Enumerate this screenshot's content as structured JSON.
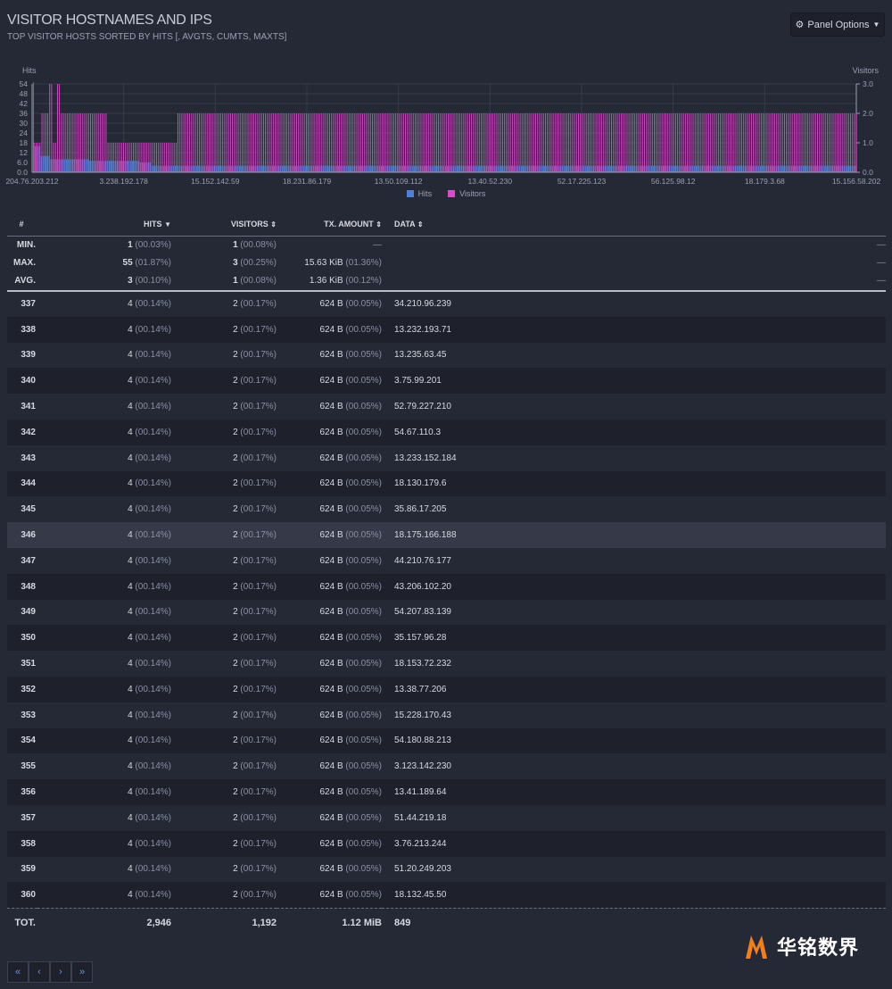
{
  "header": {
    "title": "VISITOR HOSTNAMES AND IPS",
    "subtitle": "TOP VISITOR HOSTS SORTED BY HITS [, AVGTS, CUMTS, MAXTS]",
    "panel_options": "Panel Options"
  },
  "chart_data": {
    "type": "bar",
    "y_left_label": "Hits",
    "y_right_label": "Visitors",
    "y_left_ticks": [
      "54",
      "48",
      "42",
      "36",
      "30",
      "24",
      "18",
      "12",
      "6.0",
      "0.0"
    ],
    "y_right_ticks": [
      "3.0",
      "2.0",
      "1.0",
      "0.0"
    ],
    "ylim_left": [
      0,
      54
    ],
    "ylim_right": [
      0,
      3
    ],
    "x_tick_labels": [
      "204.76.203.212",
      "3.238.192.178",
      "15.152.142.59",
      "18.231.86.179",
      "13.50.109.112",
      "13.40.52.230",
      "52.17.225.123",
      "56.125.98.12",
      "18.179.3.68",
      "15.156.58.202"
    ],
    "legend": [
      "Hits",
      "Visitors"
    ],
    "series_colors": {
      "hits": "#4f7fd6",
      "visitors": "#d44fc8"
    },
    "series": [
      {
        "name": "Hits",
        "segments": [
          {
            "count": 1,
            "value": 55
          },
          {
            "count": 3,
            "value": 16
          },
          {
            "count": 5,
            "value": 10
          },
          {
            "count": 20,
            "value": 8
          },
          {
            "count": 26,
            "value": 7
          },
          {
            "count": 6,
            "value": 6
          },
          {
            "count": 3,
            "value": 4
          },
          {
            "count": 360,
            "value": 4
          }
        ]
      },
      {
        "name": "Visitors",
        "segments": [
          {
            "count": 4,
            "value": 1
          },
          {
            "count": 4,
            "value": 2
          },
          {
            "count": 2,
            "value": 3
          },
          {
            "count": 2,
            "value": 1
          },
          {
            "count": 2,
            "value": 3
          },
          {
            "count": 24,
            "value": 2
          },
          {
            "count": 36,
            "value": 1
          },
          {
            "count": 350,
            "value": 2
          }
        ]
      }
    ]
  },
  "table": {
    "columns": {
      "num": "#",
      "hits": "HITS",
      "visitors": "VISITORS",
      "tx": "TX. AMOUNT",
      "data": "DATA"
    },
    "stats": [
      {
        "label": "MIN.",
        "hits": "1",
        "hits_pct": "(00.03%)",
        "visitors": "1",
        "visitors_pct": "(00.08%)",
        "tx": "",
        "tx_pct": "",
        "tx_dash": "—",
        "data_dash": "—"
      },
      {
        "label": "MAX.",
        "hits": "55",
        "hits_pct": "(01.87%)",
        "visitors": "3",
        "visitors_pct": "(00.25%)",
        "tx": "15.63 KiB",
        "tx_pct": "(01.36%)",
        "tx_dash": "",
        "data_dash": "—"
      },
      {
        "label": "AVG.",
        "hits": "3",
        "hits_pct": "(00.10%)",
        "visitors": "1",
        "visitors_pct": "(00.08%)",
        "tx": "1.36 KiB",
        "tx_pct": "(00.12%)",
        "tx_dash": "",
        "data_dash": "—"
      }
    ],
    "rows": [
      {
        "num": "337",
        "hits": "4",
        "hits_pct": "(00.14%)",
        "visitors": "2",
        "visitors_pct": "(00.17%)",
        "tx": "624 B",
        "tx_pct": "(00.05%)",
        "data": "34.210.96.239"
      },
      {
        "num": "338",
        "hits": "4",
        "hits_pct": "(00.14%)",
        "visitors": "2",
        "visitors_pct": "(00.17%)",
        "tx": "624 B",
        "tx_pct": "(00.05%)",
        "data": "13.232.193.71"
      },
      {
        "num": "339",
        "hits": "4",
        "hits_pct": "(00.14%)",
        "visitors": "2",
        "visitors_pct": "(00.17%)",
        "tx": "624 B",
        "tx_pct": "(00.05%)",
        "data": "13.235.63.45"
      },
      {
        "num": "340",
        "hits": "4",
        "hits_pct": "(00.14%)",
        "visitors": "2",
        "visitors_pct": "(00.17%)",
        "tx": "624 B",
        "tx_pct": "(00.05%)",
        "data": "3.75.99.201"
      },
      {
        "num": "341",
        "hits": "4",
        "hits_pct": "(00.14%)",
        "visitors": "2",
        "visitors_pct": "(00.17%)",
        "tx": "624 B",
        "tx_pct": "(00.05%)",
        "data": "52.79.227.210"
      },
      {
        "num": "342",
        "hits": "4",
        "hits_pct": "(00.14%)",
        "visitors": "2",
        "visitors_pct": "(00.17%)",
        "tx": "624 B",
        "tx_pct": "(00.05%)",
        "data": "54.67.110.3"
      },
      {
        "num": "343",
        "hits": "4",
        "hits_pct": "(00.14%)",
        "visitors": "2",
        "visitors_pct": "(00.17%)",
        "tx": "624 B",
        "tx_pct": "(00.05%)",
        "data": "13.233.152.184"
      },
      {
        "num": "344",
        "hits": "4",
        "hits_pct": "(00.14%)",
        "visitors": "2",
        "visitors_pct": "(00.17%)",
        "tx": "624 B",
        "tx_pct": "(00.05%)",
        "data": "18.130.179.6"
      },
      {
        "num": "345",
        "hits": "4",
        "hits_pct": "(00.14%)",
        "visitors": "2",
        "visitors_pct": "(00.17%)",
        "tx": "624 B",
        "tx_pct": "(00.05%)",
        "data": "35.86.17.205"
      },
      {
        "num": "346",
        "hits": "4",
        "hits_pct": "(00.14%)",
        "visitors": "2",
        "visitors_pct": "(00.17%)",
        "tx": "624 B",
        "tx_pct": "(00.05%)",
        "data": "18.175.166.188",
        "highlight": true
      },
      {
        "num": "347",
        "hits": "4",
        "hits_pct": "(00.14%)",
        "visitors": "2",
        "visitors_pct": "(00.17%)",
        "tx": "624 B",
        "tx_pct": "(00.05%)",
        "data": "44.210.76.177"
      },
      {
        "num": "348",
        "hits": "4",
        "hits_pct": "(00.14%)",
        "visitors": "2",
        "visitors_pct": "(00.17%)",
        "tx": "624 B",
        "tx_pct": "(00.05%)",
        "data": "43.206.102.20"
      },
      {
        "num": "349",
        "hits": "4",
        "hits_pct": "(00.14%)",
        "visitors": "2",
        "visitors_pct": "(00.17%)",
        "tx": "624 B",
        "tx_pct": "(00.05%)",
        "data": "54.207.83.139"
      },
      {
        "num": "350",
        "hits": "4",
        "hits_pct": "(00.14%)",
        "visitors": "2",
        "visitors_pct": "(00.17%)",
        "tx": "624 B",
        "tx_pct": "(00.05%)",
        "data": "35.157.96.28"
      },
      {
        "num": "351",
        "hits": "4",
        "hits_pct": "(00.14%)",
        "visitors": "2",
        "visitors_pct": "(00.17%)",
        "tx": "624 B",
        "tx_pct": "(00.05%)",
        "data": "18.153.72.232"
      },
      {
        "num": "352",
        "hits": "4",
        "hits_pct": "(00.14%)",
        "visitors": "2",
        "visitors_pct": "(00.17%)",
        "tx": "624 B",
        "tx_pct": "(00.05%)",
        "data": "13.38.77.206"
      },
      {
        "num": "353",
        "hits": "4",
        "hits_pct": "(00.14%)",
        "visitors": "2",
        "visitors_pct": "(00.17%)",
        "tx": "624 B",
        "tx_pct": "(00.05%)",
        "data": "15.228.170.43"
      },
      {
        "num": "354",
        "hits": "4",
        "hits_pct": "(00.14%)",
        "visitors": "2",
        "visitors_pct": "(00.17%)",
        "tx": "624 B",
        "tx_pct": "(00.05%)",
        "data": "54.180.88.213"
      },
      {
        "num": "355",
        "hits": "4",
        "hits_pct": "(00.14%)",
        "visitors": "2",
        "visitors_pct": "(00.17%)",
        "tx": "624 B",
        "tx_pct": "(00.05%)",
        "data": "3.123.142.230"
      },
      {
        "num": "356",
        "hits": "4",
        "hits_pct": "(00.14%)",
        "visitors": "2",
        "visitors_pct": "(00.17%)",
        "tx": "624 B",
        "tx_pct": "(00.05%)",
        "data": "13.41.189.64"
      },
      {
        "num": "357",
        "hits": "4",
        "hits_pct": "(00.14%)",
        "visitors": "2",
        "visitors_pct": "(00.17%)",
        "tx": "624 B",
        "tx_pct": "(00.05%)",
        "data": "51.44.219.18"
      },
      {
        "num": "358",
        "hits": "4",
        "hits_pct": "(00.14%)",
        "visitors": "2",
        "visitors_pct": "(00.17%)",
        "tx": "624 B",
        "tx_pct": "(00.05%)",
        "data": "3.76.213.244"
      },
      {
        "num": "359",
        "hits": "4",
        "hits_pct": "(00.14%)",
        "visitors": "2",
        "visitors_pct": "(00.17%)",
        "tx": "624 B",
        "tx_pct": "(00.05%)",
        "data": "51.20.249.203"
      },
      {
        "num": "360",
        "hits": "4",
        "hits_pct": "(00.14%)",
        "visitors": "2",
        "visitors_pct": "(00.17%)",
        "tx": "624 B",
        "tx_pct": "(00.05%)",
        "data": "18.132.45.50"
      }
    ],
    "total": {
      "label": "TOT.",
      "hits": "2,946",
      "visitors": "1,192",
      "tx": "1.12 MiB",
      "data": "849"
    }
  },
  "pagination": {
    "first": "«",
    "prev": "‹",
    "next": "›",
    "last": "»"
  },
  "watermark": {
    "text": "华铭数界"
  }
}
